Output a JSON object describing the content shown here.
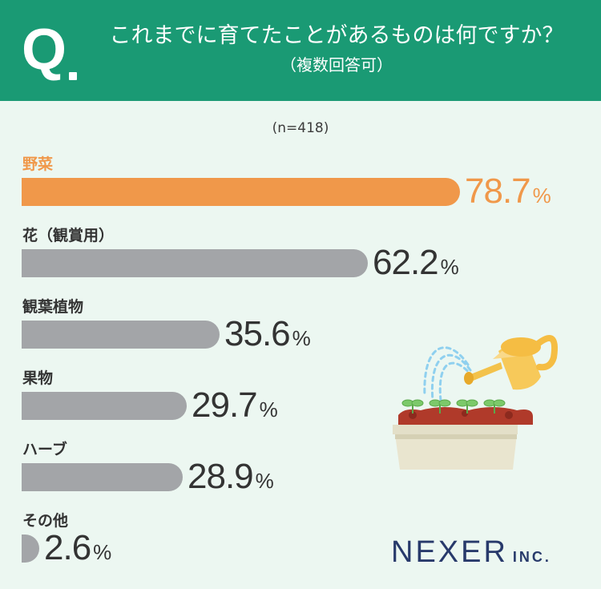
{
  "header": {
    "q_letter": "Q",
    "question": "これまでに育てたことがあるものは何ですか？",
    "note": "（複数回答可）"
  },
  "sample": "(n=418)",
  "chart_data": {
    "type": "bar",
    "orientation": "horizontal",
    "unit": "%",
    "categories": [
      "野菜",
      "花（観賞用）",
      "観葉植物",
      "果物",
      "ハーブ",
      "その他"
    ],
    "values": [
      78.7,
      62.2,
      35.6,
      29.7,
      28.9,
      2.6
    ],
    "highlight_index": 0,
    "colors": {
      "highlight": "#f0984a",
      "default": "#a3a5a8"
    },
    "xlim": [
      0,
      100
    ],
    "grid": false
  },
  "brand": {
    "name": "NEXER",
    "suffix": "INC."
  },
  "colors": {
    "header_bg": "#1a9a74",
    "page_bg": "#ecf7f1",
    "logo": "#283a6b"
  },
  "illustration": "watering-can-and-seedlings-planter"
}
